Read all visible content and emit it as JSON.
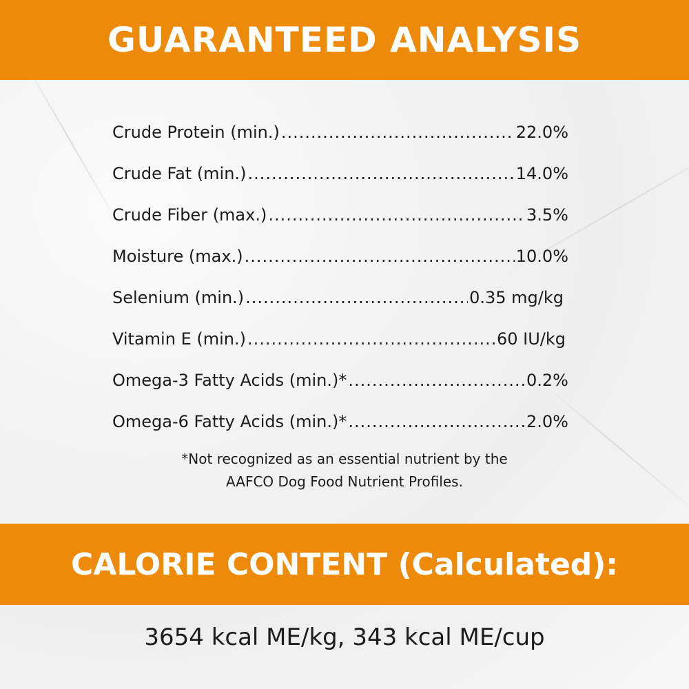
{
  "header": {
    "title": "GUARANTEED ANALYSIS"
  },
  "analysis": [
    {
      "label": "Crude Protein (min.)",
      "value": "22.0%"
    },
    {
      "label": "Crude Fat (min.)",
      "value": "14.0%"
    },
    {
      "label": "Crude Fiber (max.)",
      "value": "3.5%"
    },
    {
      "label": "Moisture (max.)",
      "value": "10.0%"
    },
    {
      "label": "Selenium (min.)",
      "value": "0.35 mg/kg"
    },
    {
      "label": "Vitamin E (min.)",
      "value": "60 IU/kg"
    },
    {
      "label": "Omega-3 Fatty Acids (min.)*",
      "value": "0.2%"
    },
    {
      "label": "Omega-6 Fatty Acids (min.)*",
      "value": "2.0%"
    }
  ],
  "footnote": {
    "line1": "*Not recognized as an essential nutrient by the",
    "line2": "AAFCO Dog Food Nutrient Profiles."
  },
  "calorie": {
    "title": "CALORIE CONTENT (Calculated):",
    "value": "3654 kcal ME/kg, 343 kcal ME/cup"
  },
  "colors": {
    "accent": "#EE8A0A",
    "text": "#1c1c1c"
  }
}
